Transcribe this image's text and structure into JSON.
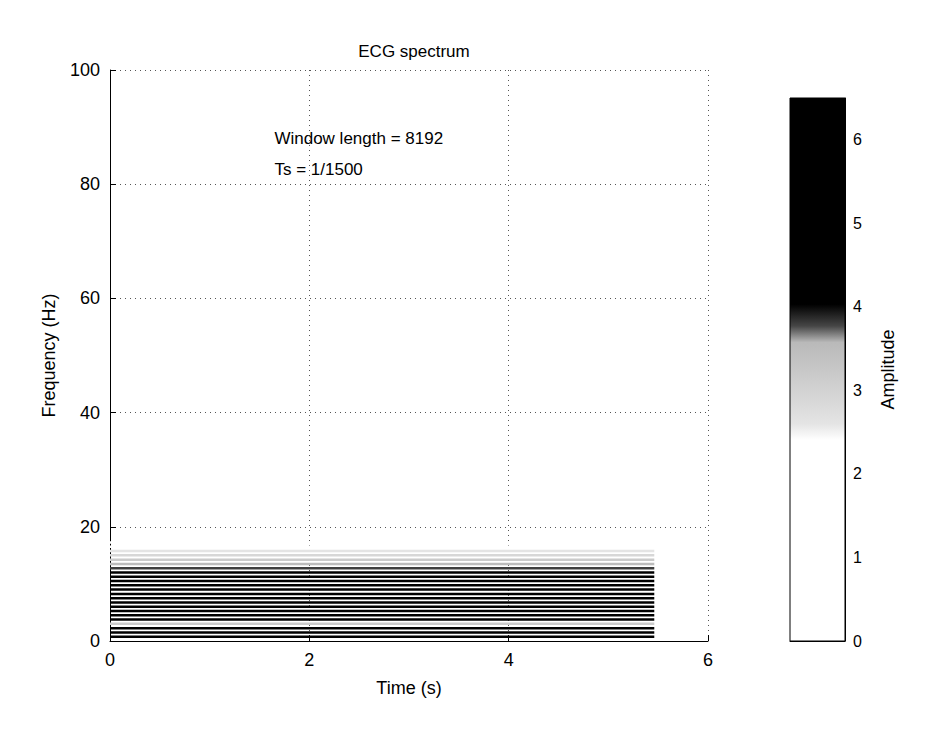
{
  "chart_data": {
    "type": "heatmap",
    "title": "ECG spectrum",
    "x_label": "Time (s)",
    "y_label": "Frequency (Hz)",
    "xlim": [
      0,
      6
    ],
    "xticks": [
      0,
      2,
      4,
      6
    ],
    "ylim": [
      0,
      100
    ],
    "yticks": [
      0,
      20,
      40,
      60,
      80,
      100
    ],
    "grid": true,
    "time_span": [
      0,
      5.461
    ],
    "frequencies": [
      0.75,
      1.5,
      2.25,
      3.0,
      3.75,
      4.5,
      5.25,
      6.0,
      6.75,
      7.5,
      8.25,
      9.0,
      9.75,
      10.5,
      11.25,
      12.0,
      12.75,
      13.5,
      14.25,
      15.0,
      15.75,
      16.5,
      17.25
    ],
    "amplitudes": [
      5.5,
      6.2,
      4.8,
      3.2,
      5.0,
      5.8,
      6.0,
      6.3,
      6.1,
      5.9,
      5.6,
      5.3,
      5.0,
      4.8,
      4.5,
      4.2,
      3.8,
      3.5,
      3.2,
      2.9,
      2.6,
      2.3,
      2.0
    ],
    "colorbar": {
      "label": "Amplitude",
      "range": [
        0,
        6.5
      ],
      "ticks": [
        0,
        1,
        2,
        3,
        4,
        5,
        6
      ]
    },
    "annotations": [
      {
        "text": "Window length = 8192",
        "x": 1.65,
        "y": 88
      },
      {
        "text": "Ts = 1/1500",
        "x": 1.65,
        "y": 82.5
      }
    ]
  }
}
